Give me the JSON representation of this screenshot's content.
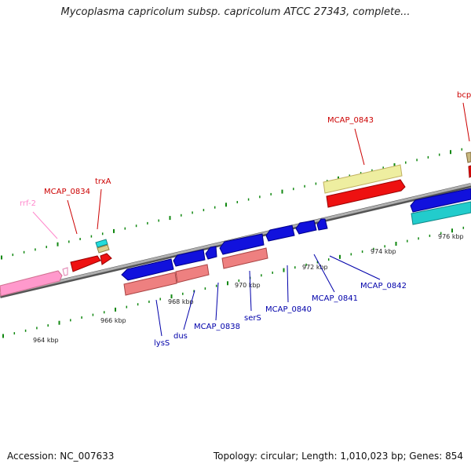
{
  "title": "Mycoplasma capricolum subsp. capricolum ATCC 27343, complete...",
  "footer": {
    "accession": "Accession: NC_007633",
    "summary": "Topology: circular; Length: 1,010,023 bp; Genes: 854"
  },
  "colors": {
    "top_strand_label": "#cc0000",
    "bottom_strand_label": "#0000aa",
    "rrna_label": "#ff88cc",
    "cds_red": "#ee1111",
    "cds_blue": "#1111dd",
    "gene_salmon": "#ee8080",
    "gene_khaki": "#eeeea0",
    "gene_cyan": "#22cccc",
    "gene_pink": "#ff99cc",
    "backbone": "#888888",
    "tick": "#118811"
  },
  "gene_labels_top": [
    "rrf-2",
    "MCAP_0834",
    "trxA",
    "MCAP_0843",
    "bcp"
  ],
  "gene_labels_bottom": [
    "lysS",
    "dus",
    "MCAP_0838",
    "serS",
    "MCAP_0840",
    "MCAP_0841",
    "MCAP_0842"
  ],
  "kbp_labels": [
    "964 kbp",
    "966 kbp",
    "968 kbp",
    "970 kbp",
    "972 kbp",
    "974 kbp",
    "976 kbp"
  ]
}
